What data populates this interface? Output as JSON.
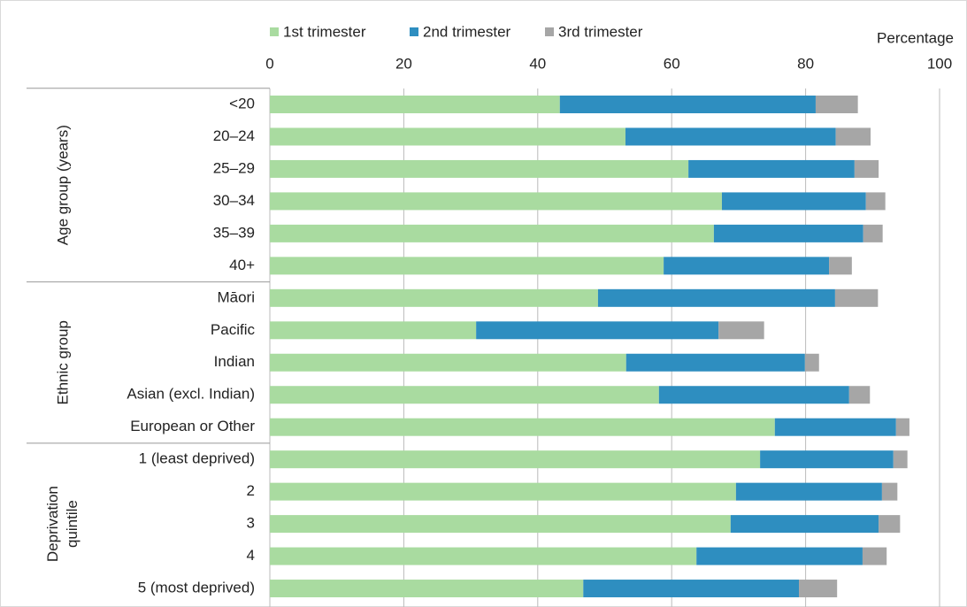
{
  "chart_data": {
    "type": "stacked_barh",
    "axis_title": "Percentage",
    "groups": [
      {
        "label": "Age group (years)",
        "categories": [
          "<20",
          "20–24",
          "25–29",
          "30–34",
          "35–39",
          "40+"
        ]
      },
      {
        "label": "Ethnic group",
        "categories": [
          "Māori",
          "Pacific",
          "Indian",
          "Asian (excl. Indian)",
          "European or Other"
        ]
      },
      {
        "label": "Deprivation quintile",
        "categories": [
          "1 (least deprived)",
          "2",
          "3",
          "4",
          "5 (most deprived)"
        ]
      }
    ],
    "series": [
      {
        "name": "1st trimester",
        "color": "#a9dba0",
        "values": [
          43.3,
          53.1,
          62.5,
          67.5,
          66.3,
          58.8,
          49.0,
          30.8,
          53.2,
          58.1,
          75.4,
          73.2,
          69.6,
          68.8,
          63.7,
          46.8
        ]
      },
      {
        "name": "2nd trimester",
        "color": "#2e8ec0",
        "values": [
          38.2,
          31.4,
          24.8,
          21.5,
          22.3,
          24.7,
          35.4,
          36.2,
          26.7,
          28.4,
          18.1,
          19.9,
          21.8,
          22.1,
          24.8,
          32.2
        ]
      },
      {
        "name": "3rd trimester",
        "color": "#a6a6a6",
        "values": [
          6.3,
          5.2,
          3.6,
          2.9,
          2.9,
          3.4,
          6.4,
          6.8,
          2.1,
          3.1,
          2.0,
          2.1,
          2.3,
          3.2,
          3.6,
          5.7
        ]
      }
    ],
    "xlim": [
      0,
      100
    ],
    "xticks": [
      0,
      20,
      40,
      60,
      80,
      100
    ],
    "grid": true
  }
}
